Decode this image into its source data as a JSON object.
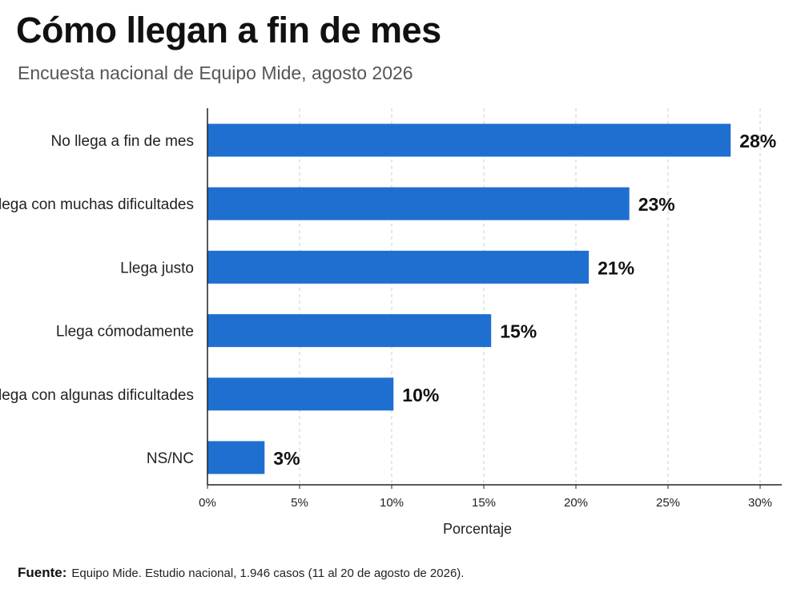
{
  "title": "Cómo llegan a fin de mes",
  "subtitle": "Encuesta nacional de Equipo Mide, agosto 2026",
  "footer": {
    "label": "Fuente:",
    "text": "Equipo Mide. Estudio nacional, 1.946 casos (11 al 20 de agosto de 2026)."
  },
  "colors": {
    "bar": "#1f6fd1",
    "grid": "#cccccc",
    "axis": "#222222"
  },
  "chart_data": {
    "type": "bar",
    "orientation": "horizontal",
    "categories": [
      "No llega a fin de mes",
      "Llega con muchas dificultades",
      "Llega justo",
      "Llega cómodamente",
      "Llega con algunas dificultades",
      "NS/NC"
    ],
    "values": [
      28.4,
      22.9,
      20.7,
      15.4,
      10.1,
      3.1
    ],
    "data_labels": [
      "28%",
      "23%",
      "21%",
      "15%",
      "10%",
      "3%"
    ],
    "xlabel": "Porcentaje",
    "xlim": [
      0,
      30
    ],
    "xticks": [
      0,
      5,
      10,
      15,
      20,
      25,
      30
    ],
    "xtick_labels": [
      "0%",
      "5%",
      "10%",
      "15%",
      "20%",
      "25%",
      "30%"
    ],
    "grid": "vertical dashed"
  }
}
